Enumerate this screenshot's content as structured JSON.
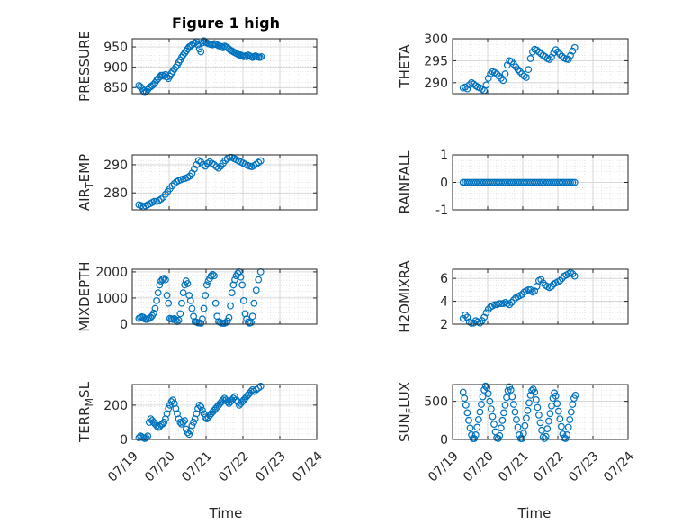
{
  "figure": {
    "title": "Figure 1 high",
    "marker_color": "#0072BD"
  },
  "chart_data": [
    {
      "type": "scatter",
      "ylabel": "PRESSURE",
      "ylabel_sub": "",
      "ylim": [
        835,
        970
      ],
      "yticks": [
        850,
        900,
        950
      ],
      "xlim": [
        "07/19",
        "07/24"
      ],
      "xtick_labels": [
        "07/19",
        "07/20",
        "07/21",
        "07/22",
        "07/23",
        "07/24"
      ],
      "x_days": [
        0.18,
        0.22,
        0.26,
        0.3,
        0.34,
        0.38,
        0.42,
        0.46,
        0.5,
        0.54,
        0.58,
        0.62,
        0.66,
        0.7,
        0.74,
        0.78,
        0.82,
        0.86,
        0.9,
        0.94,
        0.98,
        1.02,
        1.06,
        1.1,
        1.14,
        1.18,
        1.22,
        1.26,
        1.3,
        1.34,
        1.38,
        1.42,
        1.46,
        1.5,
        1.54,
        1.58,
        1.62,
        1.66,
        1.7,
        1.74,
        1.78,
        1.82,
        1.86,
        1.9,
        1.94,
        1.98,
        2.02,
        2.06,
        2.1,
        2.14,
        2.18,
        2.22,
        2.26,
        2.3,
        2.34,
        2.38,
        2.42,
        2.46,
        2.5,
        2.54,
        2.58,
        2.62,
        2.66,
        2.7,
        2.74,
        2.78,
        2.82,
        2.86,
        2.9,
        2.94,
        2.98,
        3.02,
        3.06,
        3.1,
        3.14,
        3.18,
        3.22,
        3.26,
        3.3,
        3.34,
        3.38,
        3.42,
        3.46,
        3.5
      ],
      "values": [
        855,
        852,
        848,
        842,
        838,
        840,
        845,
        850,
        852,
        855,
        858,
        862,
        868,
        872,
        876,
        880,
        880,
        878,
        882,
        876,
        872,
        878,
        885,
        890,
        895,
        900,
        905,
        912,
        918,
        925,
        930,
        935,
        940,
        945,
        950,
        952,
        955,
        958,
        960,
        963,
        955,
        945,
        938,
        960,
        965,
        962,
        960,
        958,
        957,
        956,
        955,
        958,
        957,
        955,
        953,
        952,
        950,
        948,
        952,
        950,
        948,
        945,
        942,
        940,
        938,
        936,
        934,
        932,
        930,
        930,
        928,
        926,
        928,
        926,
        930,
        928,
        926,
        924,
        926,
        928,
        926,
        925,
        924,
        926
      ],
      "title": "Figure 1 high"
    },
    {
      "type": "scatter",
      "ylabel": "THETA",
      "ylabel_sub": "",
      "ylim": [
        287.5,
        300
      ],
      "yticks": [
        290,
        295,
        300
      ],
      "xlim": [
        "07/19",
        "07/24"
      ],
      "xtick_labels": [
        "07/19",
        "07/20",
        "07/21",
        "07/22",
        "07/23",
        "07/24"
      ],
      "x_days": [
        0.3,
        0.36,
        0.42,
        0.48,
        0.54,
        0.6,
        0.66,
        0.72,
        0.78,
        0.84,
        0.9,
        0.96,
        1.02,
        1.08,
        1.14,
        1.2,
        1.26,
        1.32,
        1.38,
        1.44,
        1.5,
        1.56,
        1.62,
        1.68,
        1.74,
        1.8,
        1.86,
        1.92,
        1.98,
        2.04,
        2.1,
        2.16,
        2.22,
        2.28,
        2.34,
        2.4,
        2.46,
        2.52,
        2.58,
        2.64,
        2.7,
        2.76,
        2.82,
        2.88,
        2.94,
        3.0,
        3.06,
        3.12,
        3.18,
        3.24,
        3.3,
        3.36,
        3.42,
        3.48
      ],
      "values": [
        288.8,
        289.0,
        288.6,
        289.5,
        290.0,
        289.7,
        289.3,
        289.0,
        288.8,
        288.5,
        288.2,
        289.5,
        291.0,
        292.0,
        292.5,
        292.3,
        292.0,
        291.5,
        291.0,
        290.5,
        292.0,
        294.0,
        295.0,
        294.8,
        294.2,
        293.6,
        293.0,
        292.5,
        292.0,
        291.5,
        291.2,
        293.0,
        295.5,
        297.0,
        297.6,
        297.4,
        297.0,
        296.6,
        296.2,
        295.9,
        295.5,
        295.3,
        295.8,
        296.8,
        297.5,
        297.0,
        296.5,
        296.0,
        295.6,
        295.4,
        295.3,
        296.2,
        297.2,
        298.0
      ]
    },
    {
      "type": "scatter",
      "ylabel": "AIR",
      "ylabel_sub": "T",
      "ylabel_after": "EMP",
      "ylim": [
        274,
        293.5
      ],
      "yticks": [
        280,
        290
      ],
      "xlim": [
        "07/19",
        "07/24"
      ],
      "xtick_labels": [
        "07/19",
        "07/20",
        "07/21",
        "07/22",
        "07/23",
        "07/24"
      ],
      "x_days": [
        0.18,
        0.24,
        0.3,
        0.36,
        0.42,
        0.48,
        0.54,
        0.6,
        0.66,
        0.72,
        0.78,
        0.84,
        0.9,
        0.96,
        1.02,
        1.08,
        1.14,
        1.2,
        1.26,
        1.32,
        1.38,
        1.44,
        1.5,
        1.56,
        1.62,
        1.68,
        1.74,
        1.8,
        1.86,
        1.92,
        1.98,
        2.04,
        2.1,
        2.16,
        2.22,
        2.28,
        2.34,
        2.4,
        2.46,
        2.52,
        2.58,
        2.64,
        2.7,
        2.76,
        2.82,
        2.88,
        2.94,
        3.0,
        3.06,
        3.12,
        3.18,
        3.24,
        3.3,
        3.36,
        3.42,
        3.48
      ],
      "values": [
        275.8,
        275.5,
        275.0,
        275.4,
        275.8,
        276.2,
        276.6,
        277.0,
        277.0,
        277.3,
        277.8,
        278.5,
        279.5,
        280.5,
        281.5,
        282.5,
        283.3,
        284.0,
        284.4,
        284.7,
        285.0,
        285.2,
        285.5,
        286.0,
        287.0,
        288.5,
        290.0,
        291.5,
        291.0,
        290.0,
        289.5,
        290.5,
        291.0,
        290.5,
        290.0,
        289.3,
        288.8,
        289.5,
        290.5,
        291.5,
        292.2,
        292.6,
        292.6,
        292.2,
        291.8,
        291.4,
        291.0,
        290.6,
        290.2,
        289.8,
        289.5,
        289.3,
        289.7,
        290.2,
        290.8,
        291.4
      ]
    },
    {
      "type": "scatter",
      "ylabel": "RAINFALL",
      "ylabel_sub": "",
      "ylim": [
        -1,
        1
      ],
      "yticks": [
        -1,
        0,
        1
      ],
      "xlim": [
        "07/19",
        "07/24"
      ],
      "xtick_labels": [
        "07/19",
        "07/20",
        "07/21",
        "07/22",
        "07/23",
        "07/24"
      ],
      "x_days": [
        0.3,
        0.36,
        0.42,
        0.48,
        0.54,
        0.6,
        0.66,
        0.72,
        0.78,
        0.84,
        0.9,
        0.96,
        1.02,
        1.08,
        1.14,
        1.2,
        1.26,
        1.32,
        1.38,
        1.44,
        1.5,
        1.56,
        1.62,
        1.68,
        1.74,
        1.8,
        1.86,
        1.92,
        1.98,
        2.04,
        2.1,
        2.16,
        2.22,
        2.28,
        2.34,
        2.4,
        2.46,
        2.52,
        2.58,
        2.64,
        2.7,
        2.76,
        2.82,
        2.88,
        2.94,
        3.0,
        3.06,
        3.12,
        3.18,
        3.24,
        3.3,
        3.36,
        3.42,
        3.48
      ],
      "values": [
        0,
        0,
        0,
        0,
        0,
        0,
        0,
        0,
        0,
        0,
        0,
        0,
        0,
        0,
        0,
        0,
        0,
        0,
        0,
        0,
        0,
        0,
        0,
        0,
        0,
        0,
        0,
        0,
        0,
        0,
        0,
        0,
        0,
        0,
        0,
        0,
        0,
        0,
        0,
        0,
        0,
        0,
        0,
        0,
        0,
        0,
        0,
        0,
        0,
        0,
        0,
        0,
        0,
        0
      ]
    },
    {
      "type": "scatter",
      "ylabel": "MIXDEPTH",
      "ylabel_sub": "",
      "ylim": [
        0,
        2100
      ],
      "yticks": [
        0,
        1000,
        2000
      ],
      "xlim": [
        "07/19",
        "07/24"
      ],
      "xtick_labels": [
        "07/19",
        "07/20",
        "07/21",
        "07/22",
        "07/23",
        "07/24"
      ],
      "x_days": [
        0.18,
        0.22,
        0.26,
        0.3,
        0.34,
        0.38,
        0.42,
        0.46,
        0.5,
        0.54,
        0.58,
        0.62,
        0.66,
        0.7,
        0.74,
        0.78,
        0.82,
        0.86,
        0.9,
        0.94,
        0.98,
        1.02,
        1.06,
        1.1,
        1.14,
        1.18,
        1.22,
        1.26,
        1.3,
        1.34,
        1.38,
        1.42,
        1.46,
        1.5,
        1.54,
        1.58,
        1.62,
        1.66,
        1.7,
        1.74,
        1.78,
        1.82,
        1.86,
        1.9,
        1.94,
        1.98,
        2.02,
        2.06,
        2.1,
        2.14,
        2.18,
        2.22,
        2.26,
        2.3,
        2.34,
        2.38,
        2.42,
        2.46,
        2.5,
        2.54,
        2.58,
        2.62,
        2.66,
        2.7,
        2.74,
        2.78,
        2.82,
        2.86,
        2.9,
        2.94,
        2.98,
        3.02,
        3.06,
        3.1,
        3.14,
        3.18,
        3.22,
        3.26,
        3.3,
        3.36,
        3.42,
        3.48
      ],
      "values": [
        220,
        250,
        280,
        260,
        200,
        180,
        200,
        220,
        260,
        320,
        420,
        600,
        900,
        1200,
        1500,
        1650,
        1720,
        1750,
        1700,
        1100,
        800,
        220,
        200,
        180,
        210,
        150,
        100,
        150,
        400,
        800,
        1200,
        1500,
        1650,
        1550,
        1100,
        900,
        600,
        300,
        100,
        80,
        50,
        50,
        30,
        200,
        600,
        1100,
        1500,
        1650,
        1750,
        1850,
        1900,
        1850,
        800,
        300,
        100,
        70,
        40,
        30,
        30,
        60,
        120,
        250,
        700,
        1200,
        1500,
        1700,
        1850,
        1950,
        2000,
        1800,
        1500,
        900,
        400,
        200,
        80,
        40,
        60,
        300,
        800,
        1300,
        1700,
        2000
      ]
    },
    {
      "type": "scatter",
      "ylabel": "H2OMIXRA",
      "ylabel_sub": "",
      "ylim": [
        2,
        6.8
      ],
      "yticks": [
        2,
        4,
        6
      ],
      "xlim": [
        "07/19",
        "07/24"
      ],
      "xtick_labels": [
        "07/19",
        "07/20",
        "07/21",
        "07/22",
        "07/23",
        "07/24"
      ],
      "x_days": [
        0.3,
        0.36,
        0.42,
        0.48,
        0.54,
        0.6,
        0.66,
        0.72,
        0.78,
        0.84,
        0.9,
        0.96,
        1.02,
        1.08,
        1.14,
        1.2,
        1.26,
        1.32,
        1.38,
        1.44,
        1.5,
        1.56,
        1.62,
        1.68,
        1.74,
        1.8,
        1.86,
        1.92,
        1.98,
        2.04,
        2.1,
        2.16,
        2.22,
        2.28,
        2.34,
        2.4,
        2.46,
        2.52,
        2.58,
        2.64,
        2.7,
        2.76,
        2.82,
        2.88,
        2.94,
        3.0,
        3.06,
        3.12,
        3.18,
        3.24,
        3.3,
        3.36,
        3.42,
        3.48
      ],
      "values": [
        2.5,
        2.8,
        2.6,
        2.2,
        2.0,
        2.1,
        2.3,
        2.2,
        2.1,
        2.3,
        2.6,
        3.0,
        3.3,
        3.5,
        3.6,
        3.7,
        3.7,
        3.8,
        3.8,
        3.8,
        3.9,
        3.8,
        3.7,
        3.9,
        4.1,
        4.3,
        4.4,
        4.5,
        4.6,
        4.8,
        4.9,
        5.0,
        5.0,
        4.8,
        4.9,
        5.3,
        5.8,
        5.9,
        5.6,
        5.4,
        5.3,
        5.2,
        5.3,
        5.5,
        5.6,
        5.7,
        5.8,
        6.0,
        6.2,
        6.3,
        6.4,
        6.5,
        6.4,
        6.2
      ]
    },
    {
      "type": "scatter",
      "ylabel": "TERR",
      "ylabel_sub": "M",
      "ylabel_after": "SL",
      "ylim": [
        0,
        320
      ],
      "yticks": [
        0,
        200
      ],
      "xlim": [
        "07/19",
        "07/24"
      ],
      "xtick_labels": [
        "07/19",
        "07/20",
        "07/21",
        "07/22",
        "07/23",
        "07/24"
      ],
      "x_days": [
        0.18,
        0.22,
        0.26,
        0.3,
        0.34,
        0.38,
        0.42,
        0.46,
        0.5,
        0.54,
        0.58,
        0.62,
        0.66,
        0.7,
        0.74,
        0.78,
        0.82,
        0.86,
        0.9,
        0.94,
        0.98,
        1.02,
        1.06,
        1.1,
        1.14,
        1.18,
        1.22,
        1.26,
        1.3,
        1.34,
        1.38,
        1.42,
        1.46,
        1.5,
        1.54,
        1.58,
        1.62,
        1.66,
        1.7,
        1.74,
        1.78,
        1.82,
        1.86,
        1.9,
        1.94,
        1.98,
        2.02,
        2.06,
        2.1,
        2.14,
        2.18,
        2.22,
        2.26,
        2.3,
        2.34,
        2.38,
        2.42,
        2.46,
        2.5,
        2.54,
        2.58,
        2.62,
        2.66,
        2.7,
        2.74,
        2.78,
        2.82,
        2.86,
        2.9,
        2.94,
        2.98,
        3.02,
        3.06,
        3.1,
        3.14,
        3.18,
        3.22,
        3.26,
        3.3,
        3.36,
        3.42,
        3.48
      ],
      "values": [
        10,
        20,
        15,
        10,
        5,
        10,
        20,
        100,
        120,
        110,
        100,
        90,
        80,
        70,
        75,
        85,
        90,
        100,
        120,
        150,
        180,
        200,
        220,
        230,
        210,
        180,
        150,
        120,
        100,
        90,
        100,
        110,
        60,
        40,
        30,
        50,
        80,
        100,
        120,
        150,
        180,
        200,
        190,
        170,
        150,
        130,
        120,
        130,
        140,
        150,
        160,
        170,
        180,
        190,
        200,
        210,
        220,
        230,
        240,
        230,
        220,
        210,
        220,
        230,
        240,
        250,
        230,
        220,
        200,
        210,
        220,
        230,
        240,
        250,
        260,
        270,
        280,
        290,
        280,
        290,
        300,
        310
      ]
    },
    {
      "type": "scatter",
      "ylabel": "SUN",
      "ylabel_sub": "F",
      "ylabel_after": "LUX",
      "ylim": [
        0,
        720
      ],
      "yticks": [
        0,
        500
      ],
      "xlim": [
        "07/19",
        "07/24"
      ],
      "xtick_labels": [
        "07/19",
        "07/20",
        "07/21",
        "07/22",
        "07/23",
        "07/24"
      ],
      "x_days": [
        0.3,
        0.34,
        0.38,
        0.42,
        0.46,
        0.5,
        0.54,
        0.58,
        0.62,
        0.66,
        0.7,
        0.74,
        0.78,
        0.82,
        0.86,
        0.9,
        0.94,
        0.98,
        1.02,
        1.06,
        1.1,
        1.14,
        1.18,
        1.22,
        1.26,
        1.3,
        1.34,
        1.38,
        1.42,
        1.46,
        1.5,
        1.54,
        1.58,
        1.62,
        1.66,
        1.7,
        1.74,
        1.78,
        1.82,
        1.86,
        1.9,
        1.94,
        1.98,
        2.02,
        2.06,
        2.1,
        2.14,
        2.18,
        2.22,
        2.26,
        2.3,
        2.34,
        2.38,
        2.42,
        2.46,
        2.5,
        2.54,
        2.58,
        2.62,
        2.66,
        2.7,
        2.74,
        2.78,
        2.82,
        2.86,
        2.9,
        2.94,
        2.98,
        3.02,
        3.06,
        3.1,
        3.14,
        3.18,
        3.22,
        3.26,
        3.3,
        3.34,
        3.38,
        3.42,
        3.46,
        3.5
      ],
      "values": [
        620,
        540,
        450,
        350,
        250,
        150,
        60,
        10,
        5,
        60,
        160,
        260,
        360,
        460,
        560,
        650,
        700,
        680,
        600,
        500,
        400,
        300,
        200,
        100,
        20,
        5,
        50,
        150,
        250,
        350,
        450,
        550,
        640,
        690,
        650,
        560,
        460,
        360,
        260,
        160,
        60,
        10,
        10,
        80,
        180,
        280,
        380,
        480,
        580,
        640,
        660,
        620,
        520,
        420,
        320,
        220,
        120,
        30,
        5,
        40,
        140,
        240,
        340,
        440,
        540,
        610,
        570,
        470,
        370,
        270,
        170,
        70,
        20,
        10,
        60,
        160,
        260,
        360,
        460,
        540,
        580
      ]
    }
  ],
  "axes_labels": {
    "left_xlabel": "Time",
    "right_xlabel": "Time"
  }
}
